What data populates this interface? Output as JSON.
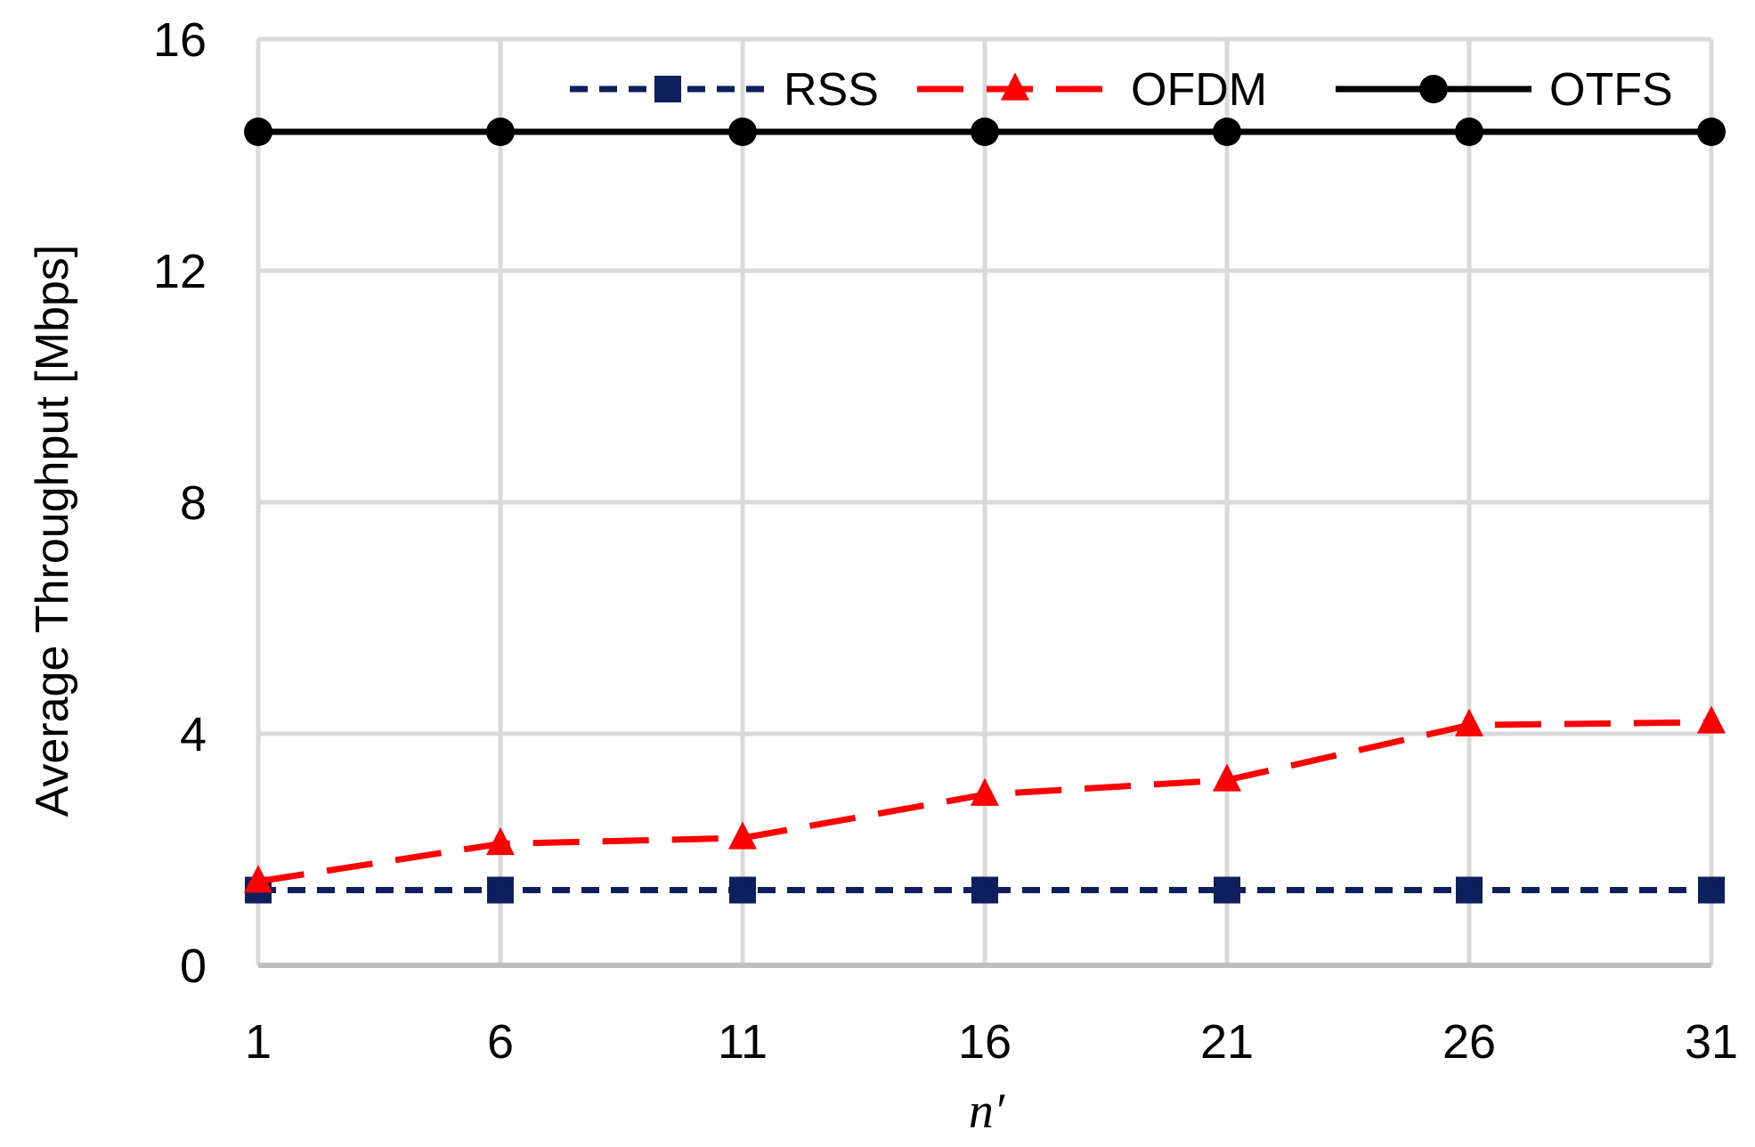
{
  "chart_data": {
    "type": "line",
    "title": "",
    "xlabel": "n′",
    "ylabel": "Average Throughput [Mbps]",
    "x": [
      1,
      6,
      11,
      16,
      21,
      26,
      31
    ],
    "x_tick_labels": [
      "1",
      "6",
      "11",
      "16",
      "21",
      "26",
      "31"
    ],
    "ylim": [
      0,
      16
    ],
    "y_ticks": [
      0,
      4,
      8,
      12,
      16
    ],
    "y_tick_labels": [
      "0",
      "4",
      "8",
      "12",
      "16"
    ],
    "grid": true,
    "legend_position": "top",
    "series": [
      {
        "name": "RSS",
        "values": [
          1.3,
          1.3,
          1.3,
          1.3,
          1.3,
          1.3,
          1.3
        ],
        "color": "#0d1f5c",
        "dash": "short-dash",
        "marker": "square"
      },
      {
        "name": "OFDM",
        "values": [
          1.45,
          2.1,
          2.2,
          2.95,
          3.2,
          4.15,
          4.2
        ],
        "color": "#ff0000",
        "dash": "long-dash",
        "marker": "triangle"
      },
      {
        "name": "OTFS",
        "values": [
          14.4,
          14.4,
          14.4,
          14.4,
          14.4,
          14.4,
          14.4
        ],
        "color": "#000000",
        "dash": "solid",
        "marker": "circle"
      }
    ]
  }
}
